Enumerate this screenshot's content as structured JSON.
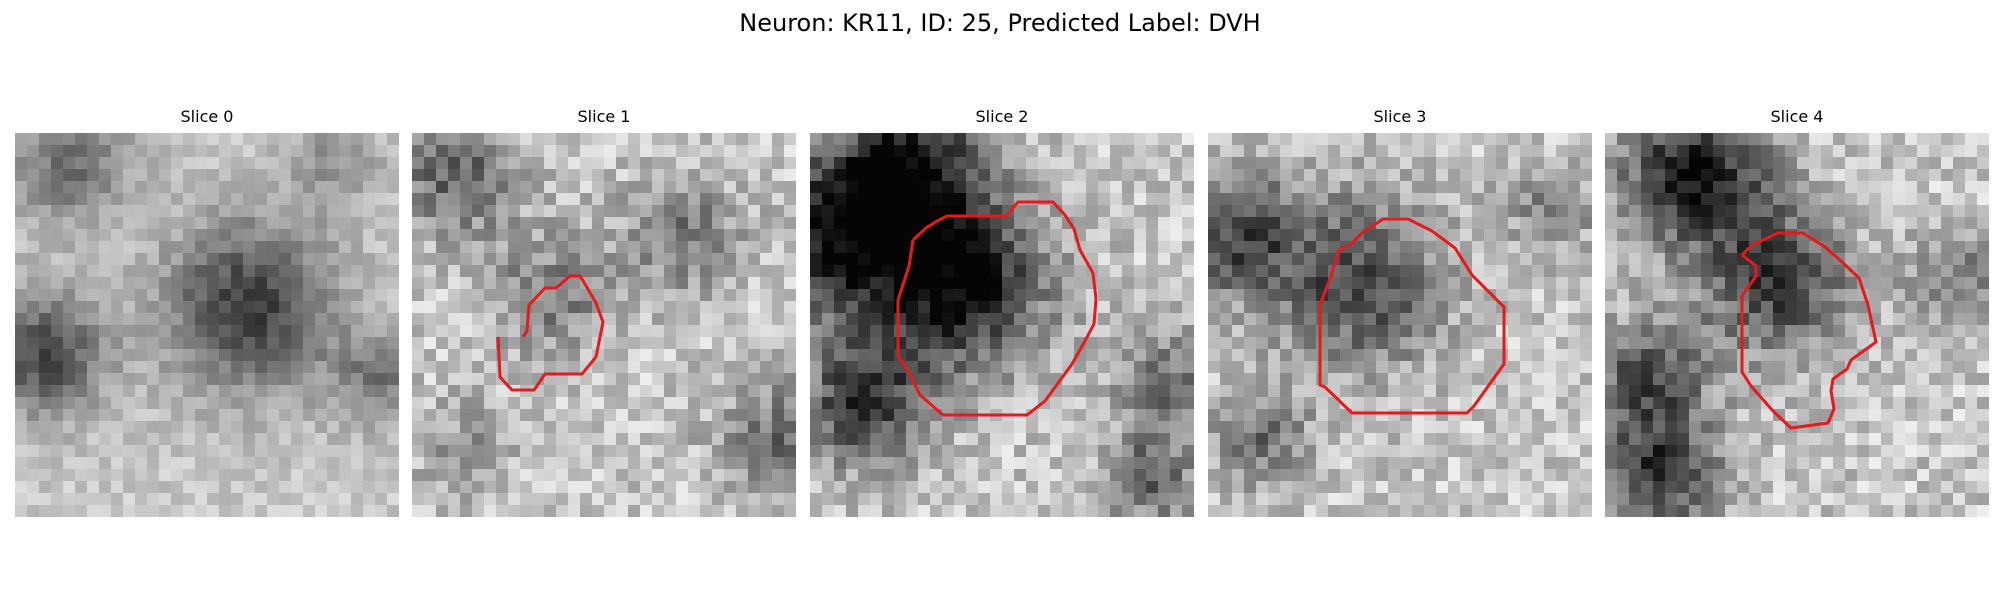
{
  "figure": {
    "title": "Neuron: KR11, ID: 25, Predicted Label: DVH"
  },
  "contour_color": "#e41a1c",
  "panels": [
    {
      "title": "Slice 0",
      "has_contour": false
    },
    {
      "title": "Slice 1",
      "has_contour": true
    },
    {
      "title": "Slice 2",
      "has_contour": true
    },
    {
      "title": "Slice 3",
      "has_contour": true
    },
    {
      "title": "Slice 4",
      "has_contour": true
    }
  ]
}
